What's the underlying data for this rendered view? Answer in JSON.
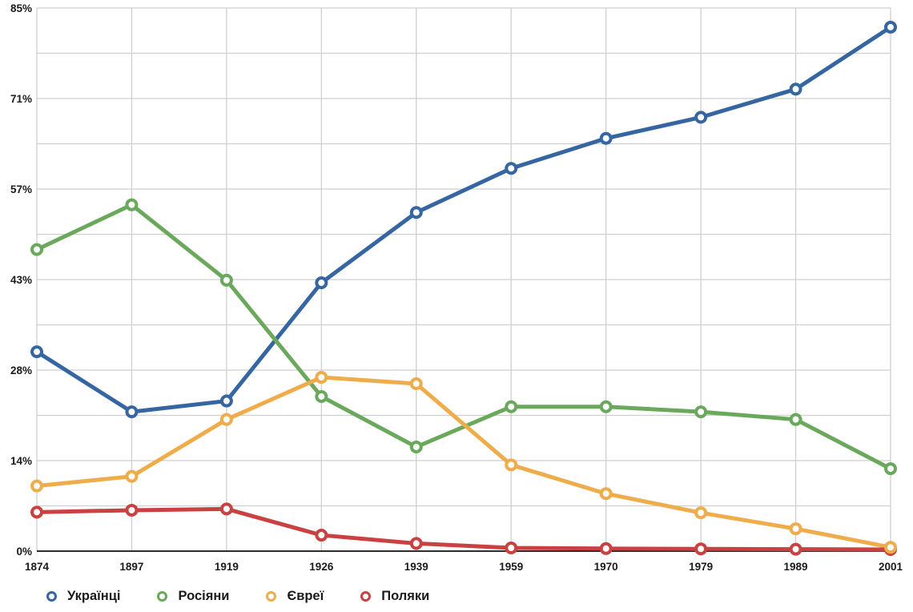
{
  "chart_data": {
    "type": "line",
    "title": "",
    "xlabel": "",
    "ylabel": "",
    "x": [
      "1874",
      "1897",
      "1919",
      "1926",
      "1939",
      "1959",
      "1970",
      "1979",
      "1989",
      "2001"
    ],
    "y_axis": {
      "min": 0,
      "max": 85,
      "divisions": 12,
      "ticks": [
        {
          "label": "0%",
          "value": 0
        },
        {
          "label": "14%",
          "value": 14.17
        },
        {
          "label": "28%",
          "value": 28.33
        },
        {
          "label": "43%",
          "value": 42.5
        },
        {
          "label": "57%",
          "value": 56.67
        },
        {
          "label": "71%",
          "value": 70.83
        },
        {
          "label": "85%",
          "value": 85
        }
      ]
    },
    "grid": true,
    "legend_position": "bottom",
    "marker": "open-circle",
    "series": [
      {
        "name": "Українці",
        "color": "#3566a2",
        "values": [
          31.2,
          21.8,
          23.5,
          42.0,
          53.0,
          59.9,
          64.6,
          67.9,
          72.3,
          82.0
        ]
      },
      {
        "name": "Росіяни",
        "color": "#6aa85c",
        "values": [
          47.2,
          54.2,
          42.4,
          24.2,
          16.3,
          22.6,
          22.6,
          21.8,
          20.6,
          12.9
        ]
      },
      {
        "name": "Євреї",
        "color": "#eeac4b",
        "values": [
          10.2,
          11.7,
          20.6,
          27.2,
          26.2,
          13.5,
          9.0,
          6.0,
          3.5,
          0.6
        ]
      },
      {
        "name": "Поляки",
        "color": "#ca4141",
        "values": [
          6.1,
          6.4,
          6.6,
          2.5,
          1.2,
          0.5,
          0.4,
          0.35,
          0.3,
          0.25
        ]
      }
    ]
  },
  "colors": {
    "background": "#ffffff",
    "gridline": "#cfcfcf",
    "axis_line": "#111111",
    "tick_text": "#1b1b1b"
  }
}
